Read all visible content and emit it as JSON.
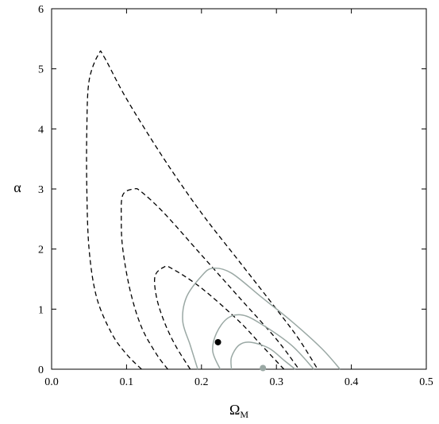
{
  "chart_data": {
    "type": "contour",
    "x_label": {
      "text": "Ω",
      "subscript": "M"
    },
    "y_label": "α",
    "xlim": [
      0,
      0.5
    ],
    "ylim": [
      0,
      6
    ],
    "xticks": [
      {
        "value": 0,
        "label": "0.0"
      },
      0.1,
      0.2,
      0.3,
      0.4,
      0.5
    ],
    "yticks": [
      0,
      1,
      2,
      3,
      4,
      5,
      6
    ],
    "series": [
      {
        "color": "#000000",
        "dash": true,
        "x": [
          0.12,
          0.1,
          0.08,
          0.06,
          0.05,
          0.047,
          0.047,
          0.05,
          0.063,
          0.07,
          0.1,
          0.15,
          0.2,
          0.25,
          0.3,
          0.33,
          0.355
        ],
        "values": [
          0,
          0.25,
          0.6,
          1.2,
          2.0,
          3.0,
          4.0,
          4.8,
          5.25,
          5.2,
          4.5,
          3.5,
          2.6,
          1.8,
          1.0,
          0.5,
          0
        ]
      },
      {
        "color": "#000000",
        "dash": true,
        "x": [
          0.155,
          0.14,
          0.12,
          0.105,
          0.095,
          0.093,
          0.095,
          0.11,
          0.12,
          0.15,
          0.2,
          0.25,
          0.3,
          0.33
        ],
        "values": [
          0,
          0.25,
          0.7,
          1.3,
          2.0,
          2.5,
          2.9,
          3.0,
          2.95,
          2.6,
          1.9,
          1.2,
          0.5,
          0
        ]
      },
      {
        "color": "#000000",
        "dash": true,
        "x": [
          0.185,
          0.165,
          0.15,
          0.14,
          0.138,
          0.15,
          0.16,
          0.2,
          0.25,
          0.28,
          0.31
        ],
        "values": [
          0,
          0.4,
          0.8,
          1.2,
          1.55,
          1.7,
          1.68,
          1.35,
          0.8,
          0.4,
          0
        ]
      },
      {
        "color": "#9aa8a4",
        "dash": false,
        "x": [
          0.195,
          0.185,
          0.175,
          0.18,
          0.2,
          0.215,
          0.24,
          0.28,
          0.32,
          0.36,
          0.385
        ],
        "values": [
          0,
          0.4,
          0.8,
          1.2,
          1.55,
          1.68,
          1.6,
          1.2,
          0.8,
          0.35,
          0
        ]
      },
      {
        "color": "#9aa8a4",
        "dash": false,
        "x": [
          0.225,
          0.215,
          0.22,
          0.235,
          0.255,
          0.28,
          0.32,
          0.35
        ],
        "values": [
          0,
          0.3,
          0.6,
          0.85,
          0.9,
          0.75,
          0.4,
          0
        ]
      },
      {
        "color": "#9aa8a4",
        "dash": false,
        "x": [
          0.24,
          0.24,
          0.25,
          0.265,
          0.29,
          0.31,
          0.325
        ],
        "values": [
          0,
          0.2,
          0.4,
          0.45,
          0.35,
          0.15,
          0
        ]
      }
    ],
    "points": [
      {
        "x": 0.222,
        "y": 0.45,
        "color": "#000000"
      },
      {
        "x": 0.282,
        "y": 0.02,
        "color": "#9aa8a4"
      }
    ]
  }
}
